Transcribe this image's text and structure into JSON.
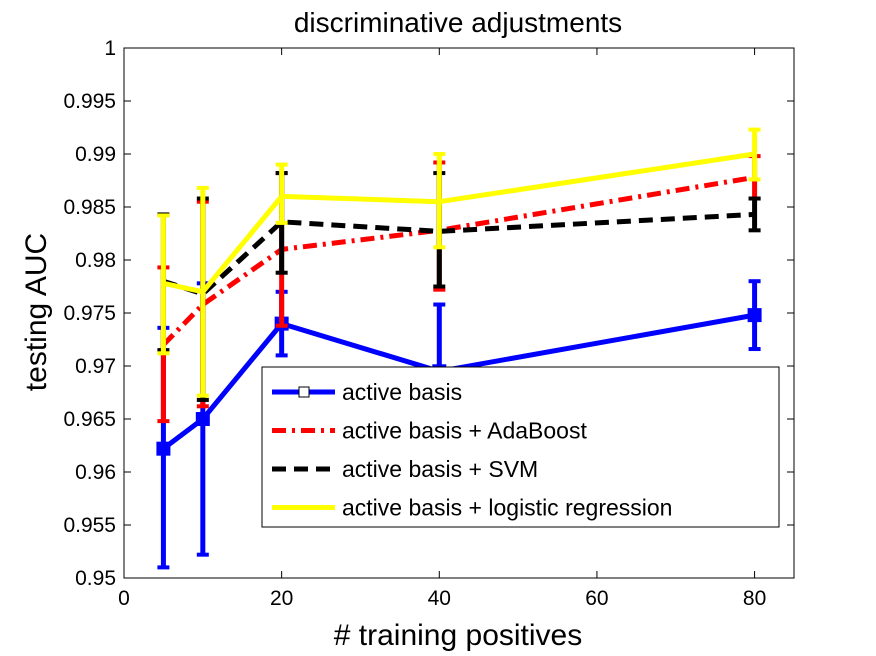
{
  "chart_data": {
    "type": "line",
    "title": "discriminative adjustments",
    "xlabel": "# training positives",
    "ylabel": "testing AUC",
    "xlim": [
      0,
      85
    ],
    "ylim": [
      0.95,
      1.0
    ],
    "x_ticks": [
      0,
      20,
      40,
      60,
      80
    ],
    "y_ticks": [
      0.95,
      0.955,
      0.96,
      0.965,
      0.97,
      0.975,
      0.98,
      0.985,
      0.99,
      0.995,
      1
    ],
    "x_tick_labels": [
      "0",
      "20",
      "40",
      "60",
      "80"
    ],
    "y_tick_labels": [
      "0.95",
      "0.955",
      "0.96",
      "0.965",
      "0.97",
      "0.975",
      "0.98",
      "0.985",
      "0.99",
      "0.995",
      "1"
    ],
    "grid": false,
    "legend_position": "bottom-right",
    "x": [
      5,
      10,
      20,
      40,
      80
    ],
    "series": [
      {
        "name": "active basis",
        "color": "#0000ff",
        "line_style": "solid",
        "marker": "square",
        "values": [
          0.9622,
          0.965,
          0.974,
          0.9695,
          0.9748
        ],
        "err_low": [
          0.951,
          0.9522,
          0.971,
          0.9632,
          0.9716
        ],
        "err_high": [
          0.9736,
          0.9778,
          0.977,
          0.9758,
          0.978
        ]
      },
      {
        "name": "active basis + AdaBoost",
        "color": "#ff0000",
        "line_style": "dashdot",
        "marker": "none",
        "values": [
          0.972,
          0.9758,
          0.981,
          0.9828,
          0.9878
        ],
        "err_low": [
          0.9648,
          0.9662,
          0.9738,
          0.9772,
          0.9858
        ],
        "err_high": [
          0.9793,
          0.9855,
          0.9882,
          0.9892,
          0.9898
        ]
      },
      {
        "name": "active basis + SVM",
        "color": "#000000",
        "line_style": "dashed",
        "marker": "none",
        "values": [
          0.978,
          0.9768,
          0.9836,
          0.9827,
          0.9843
        ],
        "err_low": [
          0.9715,
          0.9668,
          0.9788,
          0.9775,
          0.9828
        ],
        "err_high": [
          0.9843,
          0.9858,
          0.9882,
          0.9882,
          0.9858
        ]
      },
      {
        "name": "active basis + logistic regression",
        "color": "#ffff00",
        "line_style": "solid",
        "marker": "none",
        "values": [
          0.9778,
          0.977,
          0.986,
          0.9855,
          0.99
        ],
        "err_low": [
          0.9712,
          0.9672,
          0.9835,
          0.9812,
          0.9876
        ],
        "err_high": [
          0.9842,
          0.9868,
          0.989,
          0.99,
          0.9923
        ]
      }
    ]
  }
}
